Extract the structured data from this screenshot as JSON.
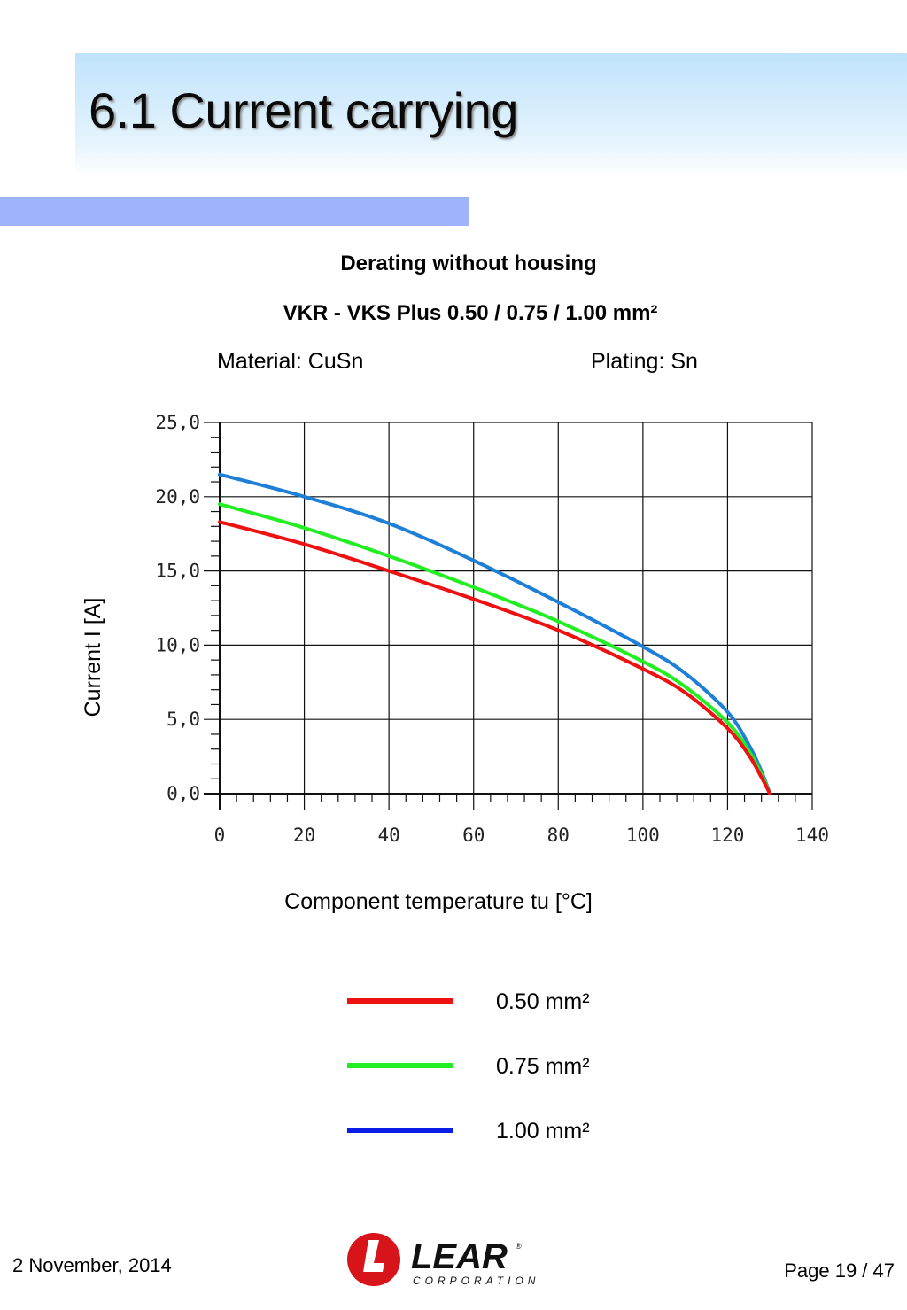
{
  "page": {
    "title": "6.1 Current carrying",
    "footer_date": "2 November, 2014",
    "footer_page": "Page 19 / 47",
    "logo": {
      "word": "LEAR",
      "sub": "CORPORATION",
      "mark": "L",
      "registered": "®"
    }
  },
  "chart_header": {
    "title": "Derating without housing",
    "subtitle": "VKR - VKS  Plus 0.50 / 0.75 / 1.00 mm²",
    "material": "Material: CuSn",
    "plating": "Plating: Sn"
  },
  "colors": {
    "accent_bar": "#9db3fb",
    "title_band": "#bfe3fb",
    "series_050": "#ee1111",
    "series_075": "#22ee22",
    "series_100": "#1e7fd6",
    "legend_100": "#0a1ee6",
    "logo_red": "#d7141a"
  },
  "chart_data": {
    "type": "line",
    "xlabel": "Component temperature tu [°C]",
    "ylabel": "Current I [A]",
    "xlim": [
      0,
      140
    ],
    "ylim": [
      0,
      25
    ],
    "grid": true,
    "x_ticks": [
      0,
      20,
      40,
      60,
      80,
      100,
      120,
      140
    ],
    "x_tick_labels": [
      "0",
      "20",
      "40",
      "60",
      "80",
      "100",
      "120",
      "140"
    ],
    "y_ticks": [
      0,
      5,
      10,
      15,
      20,
      25
    ],
    "y_tick_labels": [
      "0,0",
      "5,0",
      "10,0",
      "15,0",
      "20,0",
      "25,0"
    ],
    "legend_position": "bottom-center",
    "series": [
      {
        "name": "0.50 mm²",
        "color": "#ee1111",
        "x": [
          0,
          20,
          40,
          60,
          80,
          100,
          110,
          120,
          125,
          128,
          130
        ],
        "y": [
          18.3,
          16.8,
          15.0,
          13.1,
          11.0,
          8.4,
          6.8,
          4.4,
          2.6,
          1.1,
          0.0
        ]
      },
      {
        "name": "0.75 mm²",
        "color": "#22ee22",
        "x": [
          0,
          20,
          40,
          60,
          80,
          100,
          110,
          120,
          125,
          128,
          130
        ],
        "y": [
          19.5,
          17.9,
          16.0,
          13.9,
          11.6,
          8.9,
          7.2,
          4.8,
          2.9,
          1.3,
          0.0
        ]
      },
      {
        "name": "1.00 mm²",
        "color": "#1e7fd6",
        "x": [
          0,
          20,
          40,
          60,
          80,
          100,
          110,
          120,
          125,
          128,
          130
        ],
        "y": [
          21.5,
          20.0,
          18.2,
          15.7,
          12.9,
          9.9,
          8.1,
          5.5,
          3.3,
          1.5,
          0.0
        ]
      }
    ]
  }
}
